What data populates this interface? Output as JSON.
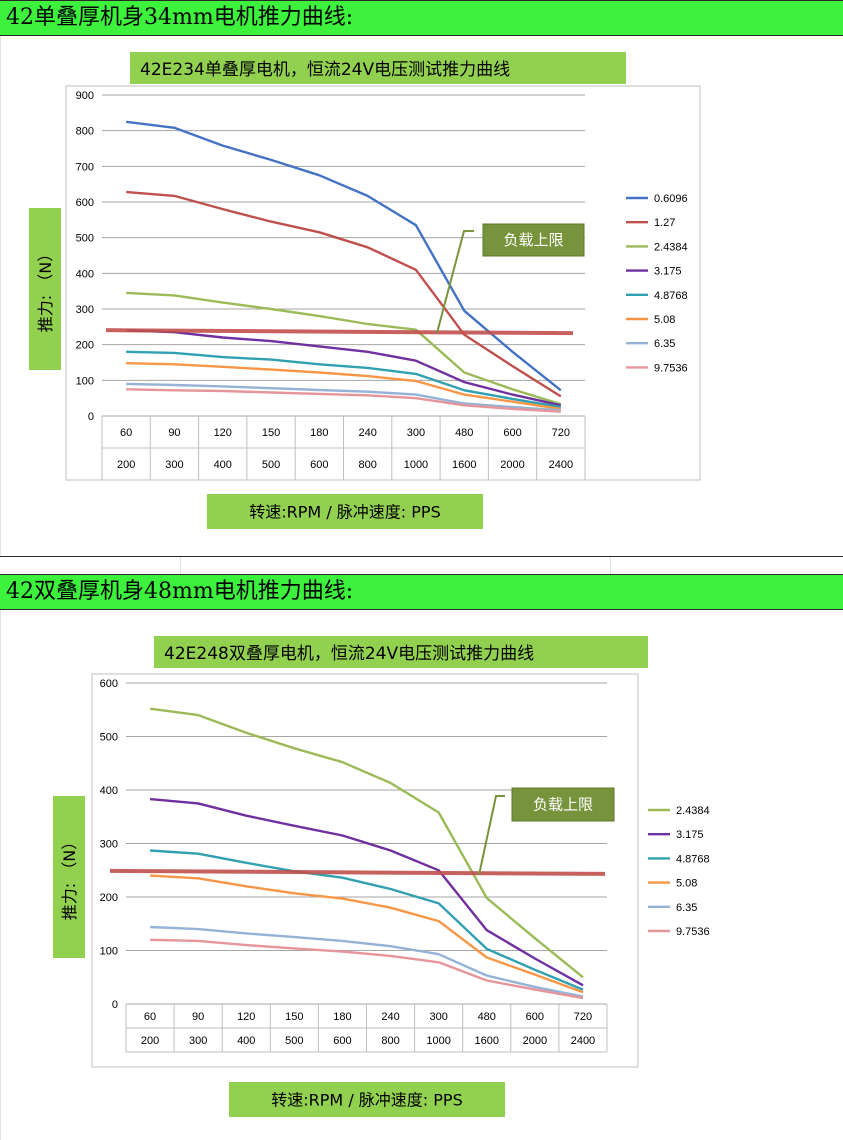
{
  "sections": [
    {
      "heading": "42单叠厚机身34mm电机推力曲线:"
    },
    {
      "heading": "42双叠厚机身48mm电机推力曲线:"
    }
  ],
  "chart_data": [
    {
      "type": "line",
      "title": "42E234单叠厚电机，恒流24V电压测试推力曲线",
      "ylabel": "推力: （N）",
      "xlabel": "转速:RPM / 脉冲速度: PPS",
      "categories": [
        "60",
        "90",
        "120",
        "150",
        "180",
        "240",
        "300",
        "480",
        "600",
        "720"
      ],
      "categories_secondary": [
        "200",
        "300",
        "400",
        "500",
        "600",
        "800",
        "1000",
        "1600",
        "2000",
        "2400"
      ],
      "ylim": [
        0,
        900
      ],
      "yticks": [
        0,
        100,
        200,
        300,
        400,
        500,
        600,
        700,
        800,
        900
      ],
      "grid": true,
      "legend_position": "right",
      "load_limit": {
        "label": "负载上限",
        "value": 235
      },
      "series": [
        {
          "name": "0.6096",
          "color": "#4472c4",
          "values": [
            825,
            808,
            758,
            718,
            675,
            617,
            535,
            295,
            180,
            72
          ]
        },
        {
          "name": "1.27",
          "color": "#c0504d",
          "values": [
            628,
            617,
            580,
            545,
            515,
            473,
            410,
            228,
            140,
            55
          ]
        },
        {
          "name": "2.4384",
          "color": "#9bbb59",
          "values": [
            345,
            338,
            318,
            300,
            280,
            258,
            242,
            122,
            75,
            33
          ]
        },
        {
          "name": "3.175",
          "color": "#7030a0",
          "values": [
            240,
            235,
            220,
            210,
            195,
            180,
            155,
            95,
            60,
            30
          ]
        },
        {
          "name": "4.8768",
          "color": "#31a0b0",
          "values": [
            180,
            177,
            165,
            158,
            145,
            135,
            118,
            72,
            48,
            25
          ]
        },
        {
          "name": "5.08",
          "color": "#f79646",
          "values": [
            148,
            145,
            138,
            130,
            122,
            112,
            98,
            60,
            40,
            20
          ]
        },
        {
          "name": "6.35",
          "color": "#95b3d7",
          "values": [
            90,
            87,
            83,
            78,
            73,
            68,
            60,
            35,
            25,
            16
          ]
        },
        {
          "name": "9.7536",
          "color": "#e6959a",
          "values": [
            75,
            72,
            70,
            66,
            62,
            58,
            50,
            30,
            20,
            12
          ]
        }
      ]
    },
    {
      "type": "line",
      "title": "42E248双叠厚电机，恒流24V电压测试推力曲线",
      "ylabel": "推力: （N）",
      "xlabel": "转速:RPM / 脉冲速度: PPS",
      "categories": [
        "60",
        "90",
        "120",
        "150",
        "180",
        "240",
        "300",
        "480",
        "600",
        "720"
      ],
      "categories_secondary": [
        "200",
        "300",
        "400",
        "500",
        "600",
        "800",
        "1000",
        "1600",
        "2000",
        "2400"
      ],
      "ylim": [
        0,
        600
      ],
      "yticks": [
        0,
        100,
        200,
        300,
        400,
        500,
        600
      ],
      "grid": true,
      "legend_position": "right",
      "load_limit": {
        "label": "负载上限",
        "value": 245
      },
      "series": [
        {
          "name": "2.4384",
          "color": "#9bbb59",
          "values": [
            552,
            540,
            507,
            478,
            452,
            413,
            358,
            198,
            123,
            50
          ]
        },
        {
          "name": "3.175",
          "color": "#7030a0",
          "values": [
            383,
            375,
            352,
            333,
            315,
            287,
            250,
            138,
            85,
            35
          ]
        },
        {
          "name": "4.8768",
          "color": "#31a0b0",
          "values": [
            287,
            281,
            264,
            248,
            236,
            215,
            188,
            103,
            64,
            27
          ]
        },
        {
          "name": "5.08",
          "color": "#f79646",
          "values": [
            240,
            235,
            220,
            207,
            197,
            180,
            155,
            87,
            55,
            22
          ]
        },
        {
          "name": "6.35",
          "color": "#95b3d7",
          "values": [
            144,
            140,
            132,
            125,
            118,
            108,
            93,
            53,
            32,
            14
          ]
        },
        {
          "name": "9.7536",
          "color": "#e6959a",
          "values": [
            120,
            118,
            110,
            104,
            98,
            90,
            78,
            44,
            27,
            11
          ]
        }
      ]
    }
  ]
}
